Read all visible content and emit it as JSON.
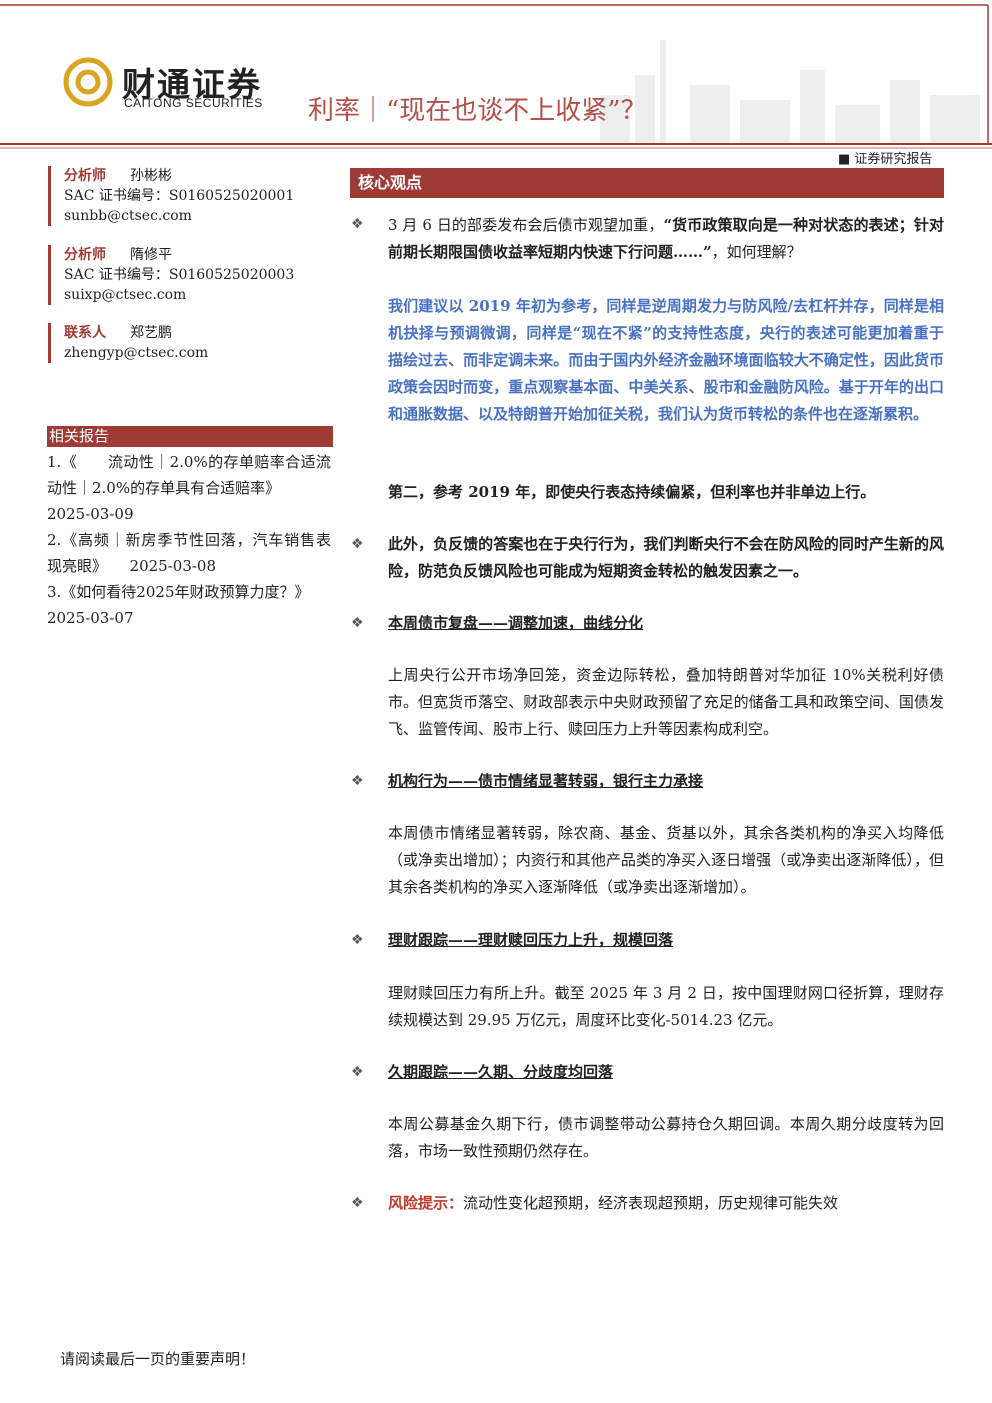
{
  "header": {
    "logo_cn": "财通证券",
    "logo_en": "CAITONG SECURITIES",
    "title": "利率｜“现在也谈不上收紧”？",
    "doc_type": "证券研究报告"
  },
  "analysts": [
    {
      "role": "分析师",
      "name": "孙彬彬",
      "sac": "SAC 证书编号：S0160525020001",
      "email": "sunbb@ctsec.com"
    },
    {
      "role": "分析师",
      "name": "隋修平",
      "sac": "SAC 证书编号：S0160525020003",
      "email": "suixp@ctsec.com"
    },
    {
      "role": "联系人",
      "name": "郑艺鹏",
      "email": "zhengyp@ctsec.com"
    }
  ],
  "related": {
    "title": "相关报告",
    "items": [
      {
        "text": "1.《　　流动性｜2.0%的存单赔率合适流动性｜2.0%的存单具有合适赔率》",
        "date": "2025-03-09"
      },
      {
        "text": "2.《高频｜新房季节性回落，汽车销售表现亮眼》",
        "date": "2025-03-08"
      },
      {
        "text": "3.《如何看待2025年财政预算力度？》",
        "date": "2025-03-07"
      }
    ]
  },
  "core": {
    "title": "核心观点",
    "paragraphs": [
      {
        "segments": [
          "3 月 6 日的部委发布会后债市观望加重，",
          "“货币政策取向是一种对状态的表述；针对前期长期限国债收益率短期内快速下行问题……”",
          "，如何理解？"
        ]
      },
      {
        "text": "我们建议以 2019 年初为参考，同样是逆周期发力与防风险/去杠杆并存，同样是相机抉择与预调微调，同样是“现在不紧”的支持性态度，央行的表述可能更加着重于描绘过去、而非定调未来。而由于国内外经济金融环境面临较大不确定性，因此货币政策会因时而变，重点观察基本面、中美关系、股市和金融防风险。基于开年的出口和通胀数据、以及特朗普开始加征关税，我们认为货币转松的条件也在逐渐累积。"
      },
      {
        "text": "第二，参考 2019 年，即使央行表态持续偏紧，但利率也并非单边上行。"
      },
      {
        "text": "此外，负反馈的答案也在于央行行为，我们判断央行不会在防风险的同时产生新的风险，防范负反馈风险也可能成为短期资金转松的触发因素之一。"
      }
    ],
    "sections": [
      {
        "heading": "本周债市复盘——调整加速，曲线分化",
        "body": "上周央行公开市场净回笼，资金边际转松，叠加特朗普对华加征 10%关税利好债市。但宽货币落空、财政部表示中央财政预留了充足的储备工具和政策空间、国债发飞、监管传闻、股市上行、赎回压力上升等因素构成利空。"
      },
      {
        "heading": "机构行为——债市情绪显著转弱，银行主力承接",
        "body": "本周债市情绪显著转弱，除农商、基金、货基以外，其余各类机构的净买入均降低（或净卖出增加）；内资行和其他产品类的净买入逐日增强（或净卖出逐渐降低），但其余各类机构的净买入逐渐降低（或净卖出逐渐增加）。"
      },
      {
        "heading": "理财跟踪——理财赎回压力上升，规模回落",
        "body": "理财赎回压力有所上升。截至 2025 年 3 月 2 日，按中国理财网口径折算，理财存续规模达到 29.95 万亿元，周度环比变化-5014.23 亿元。"
      },
      {
        "heading": "久期跟踪——久期、分歧度均回落",
        "body": "本周公募基金久期下行，债市调整带动公募持仓久期回调。本周久期分歧度转为回落，市场一致性预期仍然存在。"
      }
    ],
    "risk": {
      "label": "风险提示：",
      "text": "流动性变化超预期，经济表现超预期，历史规律可能失效"
    }
  },
  "footer": {
    "notice": "请阅读最后一页的重要声明！"
  }
}
